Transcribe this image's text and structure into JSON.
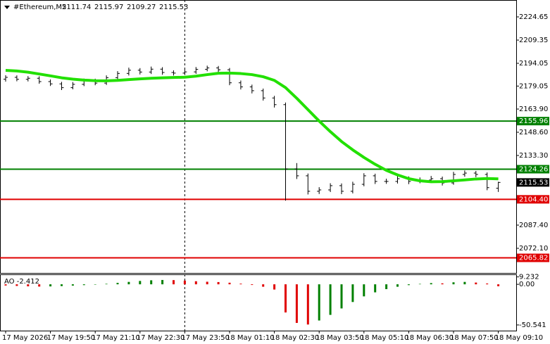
{
  "chart_data": [
    {
      "type": "candlestick",
      "title": "#Ethereum,M5",
      "header": {
        "open": 2111.74,
        "high": 2115.97,
        "low": 2109.27,
        "close": 2115.53
      },
      "categories": [
        "17 May 2026",
        null,
        null,
        null,
        "17 May 19:50",
        null,
        null,
        null,
        "17 May 21:10",
        null,
        null,
        null,
        "17 May 22:30",
        null,
        null,
        null,
        "17 May 23:50",
        null,
        null,
        null,
        "18 May 01:10",
        null,
        null,
        null,
        "18 May 02:30",
        null,
        null,
        null,
        "18 May 03:50",
        null,
        null,
        null,
        "18 May 05:10",
        null,
        null,
        null,
        "18 May 06:30",
        null,
        null,
        null,
        "18 May 07:50",
        null,
        null,
        null,
        "18 May 09:10"
      ],
      "open": [
        2183.6,
        2184.8,
        2183.5,
        2184.2,
        2182.0,
        2180.5,
        2178.0,
        2180.2,
        2182.5,
        2181.0,
        2184.6,
        2187.4,
        2189.5,
        2188.3,
        2190.2,
        2188.0,
        2187.6,
        2188.4,
        2190.1,
        2191.0,
        2189.8,
        2181.2,
        2178.5,
        2176.0,
        2171.2,
        2166.8,
        2124.5,
        2119.9,
        2109.7,
        2110.6,
        2113.4,
        2109.7,
        2114.3,
        2119.9,
        2116.2,
        2116.2,
        2118.0,
        2116.2,
        2117.1,
        2118.0,
        2115.2,
        2120.8,
        2121.7,
        2120.8,
        2111.74
      ],
      "high": [
        2186.2,
        2186.1,
        2185.6,
        2185.5,
        2183.4,
        2181.8,
        2181.7,
        2184.0,
        2183.9,
        2186.1,
        2188.9,
        2191.2,
        2190.9,
        2191.9,
        2191.5,
        2189.4,
        2190.0,
        2191.6,
        2192.5,
        2192.3,
        2191.0,
        2182.7,
        2180.0,
        2177.4,
        2172.6,
        2168.2,
        2128.3,
        2121.4,
        2112.4,
        2115.0,
        2114.9,
        2116.0,
        2121.6,
        2121.3,
        2118.0,
        2119.7,
        2119.5,
        2118.8,
        2119.8,
        2119.4,
        2122.5,
        2123.4,
        2123.1,
        2122.1,
        2115.97
      ],
      "low": [
        2182.0,
        2182.2,
        2182.1,
        2180.6,
        2179.1,
        2176.4,
        2176.9,
        2179.0,
        2179.6,
        2179.8,
        2183.2,
        2186.0,
        2186.7,
        2187.0,
        2186.5,
        2186.0,
        2186.3,
        2187.1,
        2188.8,
        2188.2,
        2179.6,
        2176.8,
        2174.2,
        2169.5,
        2164.9,
        2103.5,
        2117.8,
        2107.6,
        2107.9,
        2109.2,
        2107.8,
        2108.3,
        2113.0,
        2114.5,
        2114.6,
        2114.8,
        2114.4,
        2115.0,
        2115.7,
        2113.5,
        2114.0,
        2119.3,
        2119.0,
        2110.4,
        2109.27
      ],
      "close": [
        2184.8,
        2183.5,
        2184.2,
        2182.0,
        2180.5,
        2178.0,
        2180.2,
        2182.5,
        2181.0,
        2184.6,
        2187.4,
        2189.5,
        2188.3,
        2190.2,
        2188.0,
        2187.6,
        2188.4,
        2190.1,
        2191.0,
        2189.8,
        2181.2,
        2178.5,
        2176.0,
        2171.2,
        2166.8,
        2124.5,
        2119.9,
        2109.7,
        2110.6,
        2113.4,
        2109.7,
        2114.3,
        2119.9,
        2116.2,
        2116.2,
        2118.0,
        2116.2,
        2117.1,
        2118.0,
        2115.2,
        2120.8,
        2121.7,
        2120.8,
        2112.1,
        2115.53
      ],
      "candle_color": "#000000",
      "ma_color": "#22e000",
      "ma_values": [
        2189.4,
        2189.0,
        2188.2,
        2187.0,
        2185.8,
        2184.5,
        2183.6,
        2183.0,
        2182.6,
        2182.5,
        2182.8,
        2183.3,
        2183.8,
        2184.2,
        2184.5,
        2184.7,
        2184.9,
        2185.6,
        2186.6,
        2187.5,
        2187.6,
        2187.3,
        2186.6,
        2185.2,
        2182.8,
        2178.0,
        2171.0,
        2163.5,
        2156.0,
        2149.0,
        2142.5,
        2137.0,
        2132.0,
        2127.5,
        2123.5,
        2120.5,
        2118.0,
        2116.6,
        2116.0,
        2116.1,
        2116.6,
        2117.2,
        2117.8,
        2118.1,
        2117.9
      ],
      "levels": [
        {
          "value": 2155.96,
          "color": "#008000"
        },
        {
          "value": 2124.26,
          "color": "#008000"
        },
        {
          "value": 2104.4,
          "label": "2104.40",
          "color": "#e00000"
        },
        {
          "value": 2065.82,
          "color": "#e00000"
        }
      ],
      "ylim": [
        2055.87,
        2235.78
      ],
      "yticks": [
        2224.65,
        2209.35,
        2194.05,
        2179.05,
        {
          "value": 2163.9,
          "label": "2163.90"
        },
        {
          "value": 2148.6,
          "label": "2148.60"
        },
        {
          "value": 2133.3,
          "label": "2133.30"
        },
        {
          "value": 2087.4,
          "label": "2087.40"
        },
        {
          "value": 2072.1,
          "label": "2072.10"
        }
      ]
    },
    {
      "type": "histogram",
      "title": "AO -2.412",
      "up_color": "#008000",
      "down_color": "#e00000",
      "values": [
        -1.5,
        -2.0,
        -2.5,
        -2.8,
        -2.6,
        -2.2,
        -1.6,
        -1.0,
        -0.4,
        0.6,
        1.8,
        3.0,
        4.2,
        5.0,
        5.4,
        5.2,
        4.6,
        3.8,
        3.2,
        2.8,
        2.0,
        0.8,
        -0.8,
        -3.0,
        -6.5,
        -35,
        -48,
        -50,
        -45,
        -38,
        -30,
        -22,
        -15,
        -10,
        -6,
        -3,
        -1,
        0.5,
        1.5,
        1.2,
        2.5,
        3.0,
        2.2,
        1.0,
        -2.412
      ],
      "ylim": [
        -57.6,
        11.5
      ],
      "yticks": [
        9.232,
        {
          "value": 0,
          "label": "0.00"
        },
        -50.541
      ]
    }
  ]
}
